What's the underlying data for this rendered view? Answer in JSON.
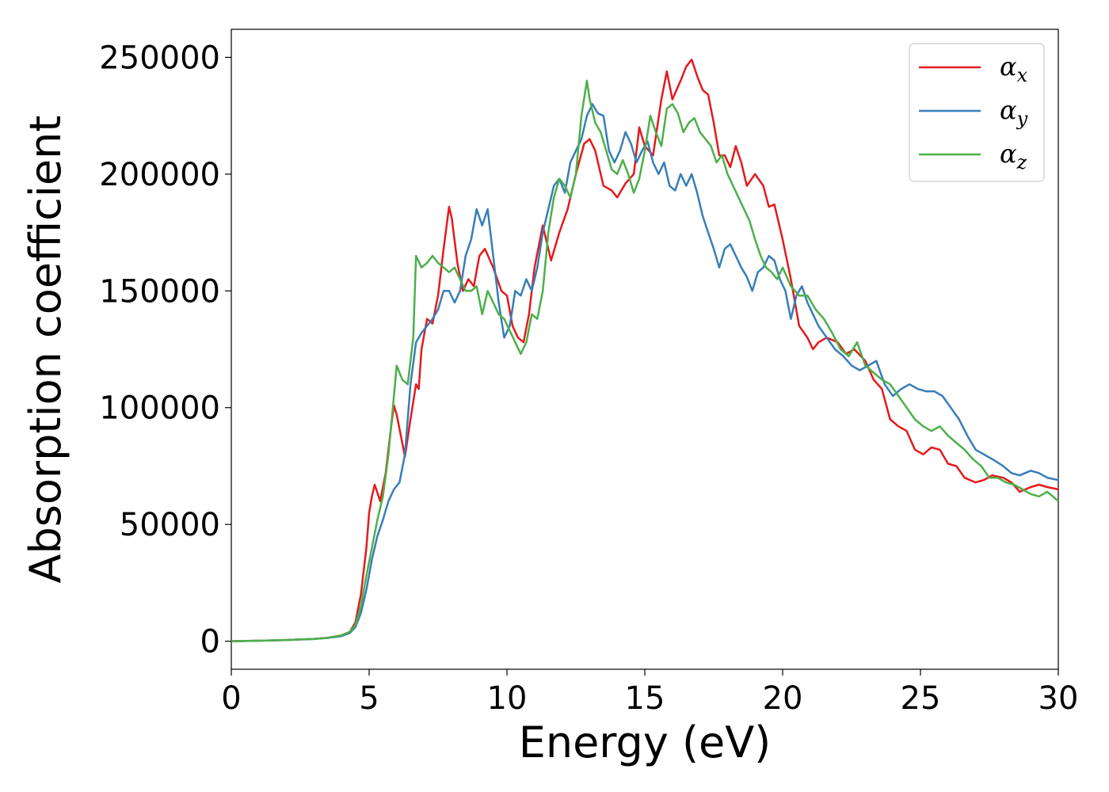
{
  "chart_data": {
    "type": "line",
    "title": "",
    "xlabel": "Energy (eV)",
    "ylabel": "Absorption coefficient",
    "xlim": [
      0,
      30
    ],
    "ylim": [
      -12000,
      262000
    ],
    "xticks": [
      "0",
      "5",
      "10",
      "15",
      "20",
      "25",
      "30"
    ],
    "yticks": [
      "0",
      "50000",
      "100000",
      "150000",
      "200000",
      "250000"
    ],
    "grid": false,
    "legend_position": "top-right",
    "series": [
      {
        "name": "α_x",
        "label_main": "α",
        "label_sub": "x",
        "color": "#e41a1c",
        "x": [
          0,
          1,
          2,
          3,
          3.5,
          4,
          4.3,
          4.5,
          4.7,
          4.9,
          5.0,
          5.1,
          5.2,
          5.4,
          5.6,
          5.8,
          5.9,
          6.0,
          6.2,
          6.3,
          6.5,
          6.7,
          6.8,
          6.9,
          7.1,
          7.3,
          7.5,
          7.7,
          7.9,
          8.0,
          8.2,
          8.4,
          8.6,
          8.8,
          9.0,
          9.2,
          9.5,
          9.8,
          10.0,
          10.2,
          10.4,
          10.6,
          10.8,
          11.0,
          11.3,
          11.6,
          11.9,
          12.2,
          12.5,
          12.8,
          13.0,
          13.2,
          13.5,
          13.8,
          14.0,
          14.3,
          14.6,
          14.8,
          15.0,
          15.3,
          15.6,
          15.8,
          16.0,
          16.3,
          16.5,
          16.7,
          16.9,
          17.1,
          17.3,
          17.5,
          17.7,
          17.9,
          18.1,
          18.3,
          18.5,
          18.7,
          19.0,
          19.3,
          19.5,
          19.7,
          20.0,
          20.3,
          20.6,
          20.9,
          21.1,
          21.3,
          21.6,
          22.0,
          22.3,
          22.6,
          23.0,
          23.3,
          23.6,
          23.9,
          24.2,
          24.5,
          24.8,
          25.1,
          25.4,
          25.7,
          26.0,
          26.3,
          26.6,
          27.0,
          27.3,
          27.6,
          28.0,
          28.3,
          28.6,
          29.0,
          29.3,
          29.6,
          30.0
        ],
        "y": [
          0,
          200,
          500,
          1000,
          1500,
          2500,
          4000,
          8000,
          20000,
          40000,
          55000,
          62000,
          67000,
          60000,
          72000,
          92000,
          101000,
          97000,
          85000,
          79000,
          95000,
          110000,
          108000,
          125000,
          138000,
          136000,
          148000,
          168000,
          186000,
          181000,
          162000,
          150000,
          155000,
          152000,
          165000,
          168000,
          160000,
          150000,
          148000,
          135000,
          130000,
          128000,
          140000,
          160000,
          178000,
          163000,
          175000,
          185000,
          200000,
          213000,
          215000,
          210000,
          195000,
          193000,
          190000,
          196000,
          200000,
          220000,
          212000,
          208000,
          232000,
          244000,
          232000,
          240000,
          246000,
          249000,
          242000,
          236000,
          234000,
          222000,
          208000,
          208000,
          203000,
          212000,
          205000,
          195000,
          200000,
          195000,
          186000,
          187000,
          172000,
          155000,
          135000,
          130000,
          125000,
          128000,
          130000,
          128000,
          123000,
          125000,
          120000,
          112000,
          108000,
          95000,
          92000,
          90000,
          82000,
          80000,
          83000,
          82000,
          76000,
          75000,
          70000,
          68000,
          69000,
          71000,
          70000,
          68000,
          64000,
          66000,
          67000,
          66000,
          65000
        ],
        "values_note": ""
      },
      {
        "name": "α_y",
        "label_main": "α",
        "label_sub": "y",
        "color": "#377eb8",
        "x": [
          0,
          1,
          2,
          3,
          3.5,
          4,
          4.3,
          4.5,
          4.7,
          4.9,
          5.1,
          5.3,
          5.5,
          5.7,
          5.9,
          6.1,
          6.3,
          6.5,
          6.7,
          6.9,
          7.1,
          7.3,
          7.5,
          7.7,
          7.9,
          8.1,
          8.3,
          8.5,
          8.7,
          8.9,
          9.1,
          9.3,
          9.5,
          9.7,
          9.9,
          10.1,
          10.3,
          10.5,
          10.7,
          10.9,
          11.1,
          11.3,
          11.5,
          11.7,
          11.9,
          12.1,
          12.3,
          12.5,
          12.7,
          12.9,
          13.1,
          13.3,
          13.5,
          13.7,
          13.9,
          14.1,
          14.3,
          14.5,
          14.7,
          14.9,
          15.1,
          15.3,
          15.5,
          15.7,
          15.9,
          16.1,
          16.3,
          16.5,
          16.7,
          16.9,
          17.1,
          17.3,
          17.5,
          17.7,
          17.9,
          18.1,
          18.3,
          18.5,
          18.7,
          18.9,
          19.1,
          19.3,
          19.5,
          19.7,
          19.9,
          20.1,
          20.3,
          20.5,
          20.7,
          20.9,
          21.1,
          21.3,
          21.6,
          21.9,
          22.2,
          22.5,
          22.8,
          23.1,
          23.4,
          23.7,
          24.0,
          24.3,
          24.6,
          24.9,
          25.2,
          25.5,
          25.8,
          26.1,
          26.4,
          26.7,
          27.0,
          27.3,
          27.6,
          28.0,
          28.3,
          28.6,
          29.0,
          29.3,
          29.6,
          30.0
        ],
        "y": [
          0,
          200,
          500,
          1000,
          1400,
          2200,
          3500,
          6000,
          12000,
          22000,
          35000,
          45000,
          52000,
          60000,
          65000,
          68000,
          80000,
          110000,
          128000,
          132000,
          135000,
          138000,
          142000,
          150000,
          150000,
          145000,
          150000,
          165000,
          172000,
          185000,
          178000,
          185000,
          165000,
          145000,
          130000,
          135000,
          150000,
          148000,
          155000,
          150000,
          160000,
          175000,
          185000,
          195000,
          198000,
          192000,
          205000,
          210000,
          215000,
          225000,
          230000,
          226000,
          225000,
          210000,
          205000,
          210000,
          218000,
          213000,
          205000,
          210000,
          214000,
          205000,
          200000,
          205000,
          195000,
          193000,
          200000,
          195000,
          200000,
          192000,
          182000,
          175000,
          168000,
          160000,
          168000,
          170000,
          165000,
          160000,
          156000,
          150000,
          158000,
          160000,
          165000,
          163000,
          155000,
          150000,
          138000,
          148000,
          152000,
          145000,
          140000,
          135000,
          130000,
          125000,
          122000,
          118000,
          116000,
          118000,
          120000,
          110000,
          105000,
          108000,
          110000,
          108000,
          107000,
          107000,
          105000,
          100000,
          95000,
          88000,
          82000,
          80000,
          78000,
          75000,
          72000,
          71000,
          73000,
          72000,
          70000,
          69000
        ],
        "values_note": ""
      },
      {
        "name": "α_z",
        "label_main": "α",
        "label_sub": "z",
        "color": "#4daf4a",
        "x": [
          0,
          1,
          2,
          3,
          3.5,
          4,
          4.3,
          4.5,
          4.7,
          4.9,
          5.1,
          5.3,
          5.5,
          5.7,
          5.9,
          6.0,
          6.2,
          6.4,
          6.6,
          6.7,
          6.9,
          7.1,
          7.3,
          7.5,
          7.7,
          7.9,
          8.1,
          8.3,
          8.5,
          8.7,
          8.9,
          9.1,
          9.3,
          9.5,
          9.7,
          9.9,
          10.1,
          10.3,
          10.5,
          10.7,
          10.9,
          11.1,
          11.3,
          11.5,
          11.7,
          11.9,
          12.1,
          12.3,
          12.5,
          12.7,
          12.9,
          13.0,
          13.2,
          13.4,
          13.6,
          13.8,
          14.0,
          14.2,
          14.4,
          14.6,
          14.8,
          15.0,
          15.2,
          15.4,
          15.6,
          15.8,
          16.0,
          16.2,
          16.4,
          16.6,
          16.8,
          17.0,
          17.2,
          17.4,
          17.6,
          17.8,
          18.0,
          18.2,
          18.4,
          18.6,
          18.8,
          19.0,
          19.2,
          19.4,
          19.6,
          19.8,
          20.0,
          20.3,
          20.6,
          20.9,
          21.2,
          21.5,
          21.8,
          22.1,
          22.4,
          22.7,
          23.0,
          23.3,
          23.6,
          23.9,
          24.2,
          24.5,
          24.8,
          25.1,
          25.4,
          25.7,
          26.0,
          26.3,
          26.6,
          26.9,
          27.2,
          27.5,
          27.8,
          28.1,
          28.4,
          28.7,
          29.0,
          29.3,
          29.6,
          30.0
        ],
        "y": [
          0,
          200,
          500,
          1000,
          1500,
          2500,
          4000,
          7000,
          15000,
          28000,
          40000,
          52000,
          62000,
          80000,
          105000,
          118000,
          112000,
          110000,
          130000,
          165000,
          160000,
          162000,
          165000,
          162000,
          160000,
          158000,
          160000,
          155000,
          150000,
          150000,
          152000,
          140000,
          150000,
          145000,
          140000,
          138000,
          133000,
          128000,
          123000,
          128000,
          140000,
          138000,
          150000,
          175000,
          190000,
          198000,
          195000,
          190000,
          200000,
          225000,
          240000,
          232000,
          222000,
          218000,
          210000,
          202000,
          200000,
          206000,
          200000,
          192000,
          198000,
          210000,
          225000,
          218000,
          212000,
          228000,
          230000,
          226000,
          218000,
          222000,
          224000,
          218000,
          215000,
          212000,
          205000,
          208000,
          200000,
          195000,
          190000,
          185000,
          180000,
          172000,
          165000,
          160000,
          158000,
          155000,
          160000,
          152000,
          148000,
          148000,
          142000,
          138000,
          132000,
          125000,
          122000,
          128000,
          118000,
          115000,
          112000,
          110000,
          105000,
          100000,
          95000,
          92000,
          90000,
          92000,
          88000,
          85000,
          82000,
          78000,
          75000,
          70000,
          70000,
          68000,
          67000,
          65000,
          63000,
          62000,
          64000,
          60000
        ],
        "values_note": ""
      }
    ]
  }
}
